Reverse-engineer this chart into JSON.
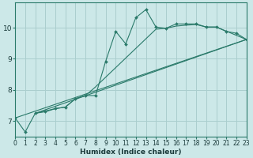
{
  "xlabel": "Humidex (Indice chaleur)",
  "bg_color": "#cce8e8",
  "line_color": "#2a7a6a",
  "grid_color": "#aacece",
  "xlim": [
    0,
    23
  ],
  "ylim": [
    6.5,
    10.8
  ],
  "yticks": [
    7,
    8,
    9,
    10
  ],
  "xticks": [
    0,
    1,
    2,
    3,
    4,
    5,
    6,
    7,
    8,
    9,
    10,
    11,
    12,
    13,
    14,
    15,
    16,
    17,
    18,
    19,
    20,
    21,
    22,
    23
  ],
  "lines": [
    {
      "x": [
        0,
        1,
        2,
        3,
        4,
        5,
        6,
        7,
        8,
        9,
        10,
        11,
        12,
        13,
        14,
        15,
        16,
        17,
        18,
        19,
        20,
        21,
        22,
        23
      ],
      "y": [
        7.1,
        6.65,
        7.25,
        7.3,
        7.4,
        7.45,
        7.72,
        7.82,
        7.82,
        8.92,
        9.88,
        9.48,
        10.32,
        10.58,
        10.02,
        9.98,
        10.12,
        10.12,
        10.12,
        10.02,
        10.02,
        9.88,
        9.82,
        9.62
      ],
      "has_markers": true
    },
    {
      "x": [
        2,
        4,
        5,
        6,
        7,
        8,
        14,
        15,
        16,
        17,
        18,
        19,
        20,
        23
      ],
      "y": [
        7.25,
        7.4,
        7.45,
        7.72,
        7.82,
        8.1,
        9.95,
        9.98,
        10.05,
        10.08,
        10.1,
        10.02,
        10.02,
        9.62
      ],
      "has_markers": false
    },
    {
      "x": [
        2,
        23
      ],
      "y": [
        7.25,
        9.62
      ],
      "has_markers": false
    },
    {
      "x": [
        0,
        23
      ],
      "y": [
        7.1,
        9.62
      ],
      "has_markers": false
    }
  ],
  "marker": "D",
  "markersize": 2.0,
  "linewidth": 0.8
}
